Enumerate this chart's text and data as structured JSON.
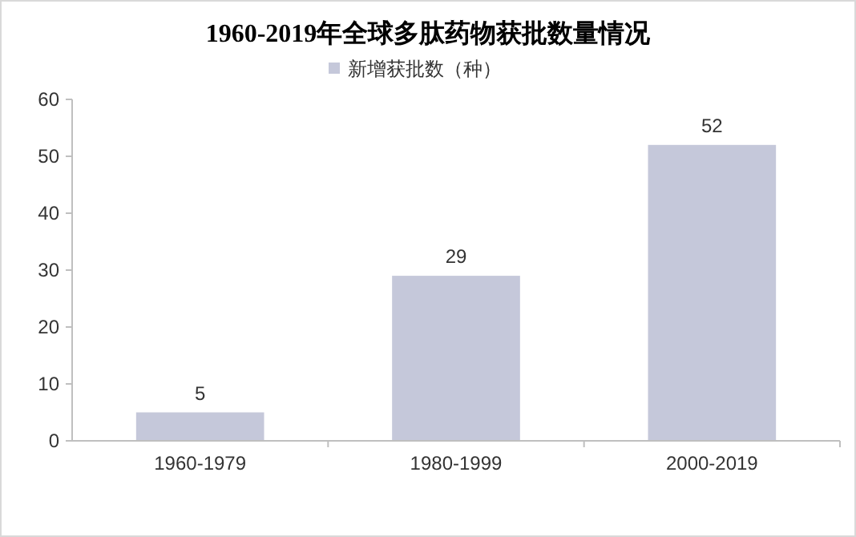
{
  "chart_data": {
    "type": "bar",
    "title": "1960-2019年全球多肽药物获批数量情况",
    "categories": [
      "1960-1979",
      "1980-1999",
      "2000-2019"
    ],
    "series": [
      {
        "name": "新增获批数（种）",
        "color": "#c5c8da",
        "values": [
          5,
          29,
          52
        ]
      }
    ],
    "ylim": [
      0,
      60
    ],
    "yticks": [
      0,
      10,
      20,
      30,
      40,
      50,
      60
    ],
    "grid": false,
    "legend": "top",
    "data_labels": true
  }
}
